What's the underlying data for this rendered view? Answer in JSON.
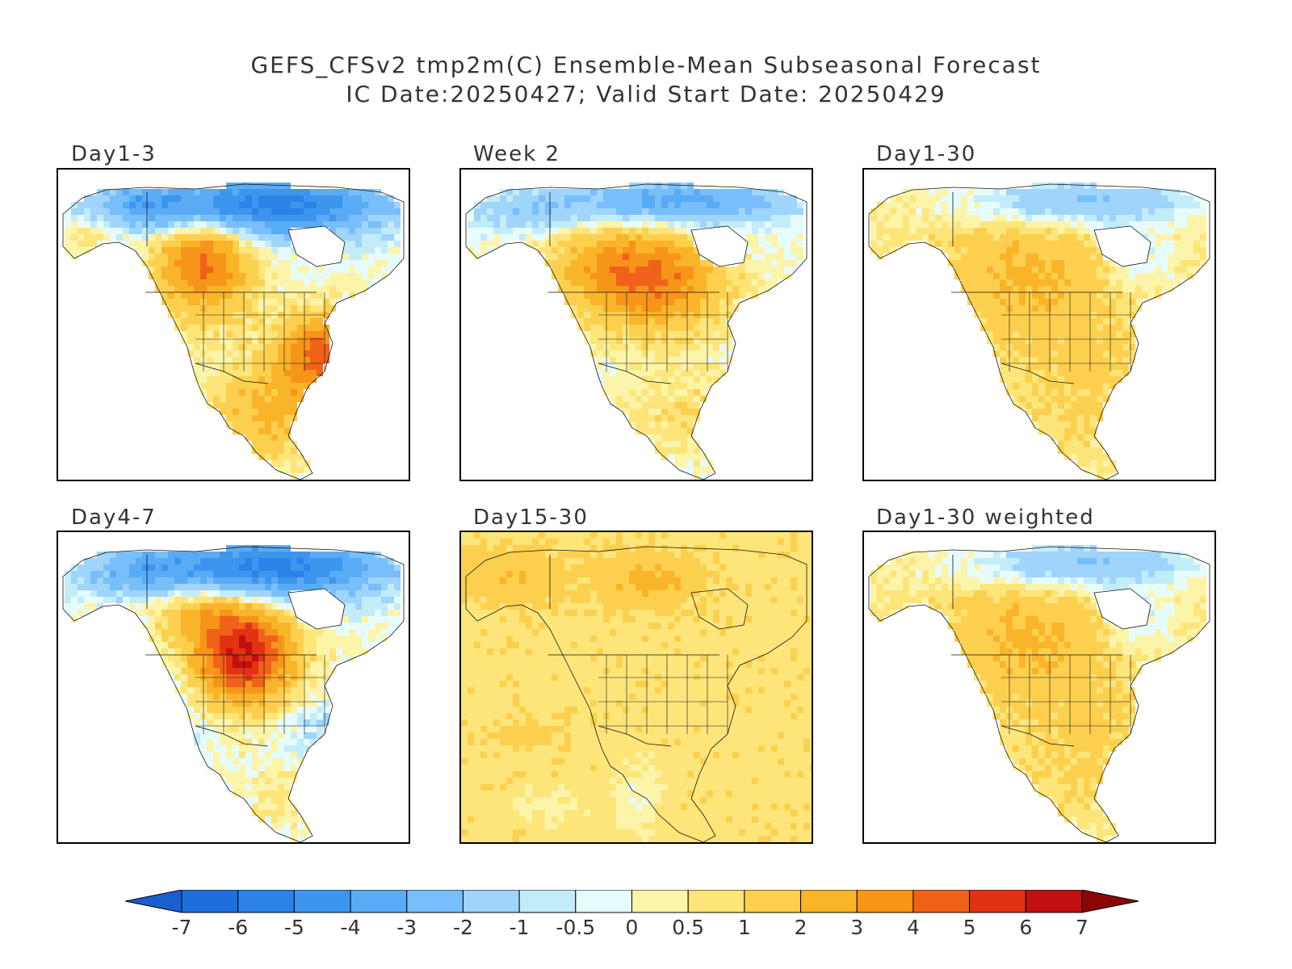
{
  "title_line1": "GEFS_CFSv2 tmp2m(C) Ensemble-Mean Subseasonal Forecast",
  "title_line2": "IC Date:20250427; Valid Start Date: 20250429",
  "panels": [
    {
      "label": "Day1-3",
      "pattern": "strong-west-east-warm"
    },
    {
      "label": "Week 2",
      "pattern": "moderate-central-warm"
    },
    {
      "label": "Day1-30",
      "pattern": "mild-warm"
    },
    {
      "label": "Day4-7",
      "pattern": "strong-west-warm-east-cool"
    },
    {
      "label": "Day15-30",
      "pattern": "ocean-filled-mild-warm"
    },
    {
      "label": "Day1-30 weighted",
      "pattern": "mild-warm"
    }
  ],
  "colorbar": {
    "labels": [
      "-7",
      "-6",
      "-5",
      "-4",
      "-3",
      "-2",
      "-1",
      "-0.5",
      "0",
      "0.5",
      "1",
      "2",
      "3",
      "4",
      "5",
      "6",
      "7"
    ],
    "colors": [
      "#1e6fdc",
      "#2c82e6",
      "#3c96ee",
      "#5aabf5",
      "#78befa",
      "#9fd4fb",
      "#c3ecf9",
      "#e6fbfb",
      "#fcf4a8",
      "#fde57a",
      "#fcd04e",
      "#fab42a",
      "#f7941a",
      "#f0621a",
      "#e23214",
      "#c01010",
      "#9c0808"
    ],
    "under_color": "#1a5fd0",
    "over_color": "#8c0606"
  }
}
